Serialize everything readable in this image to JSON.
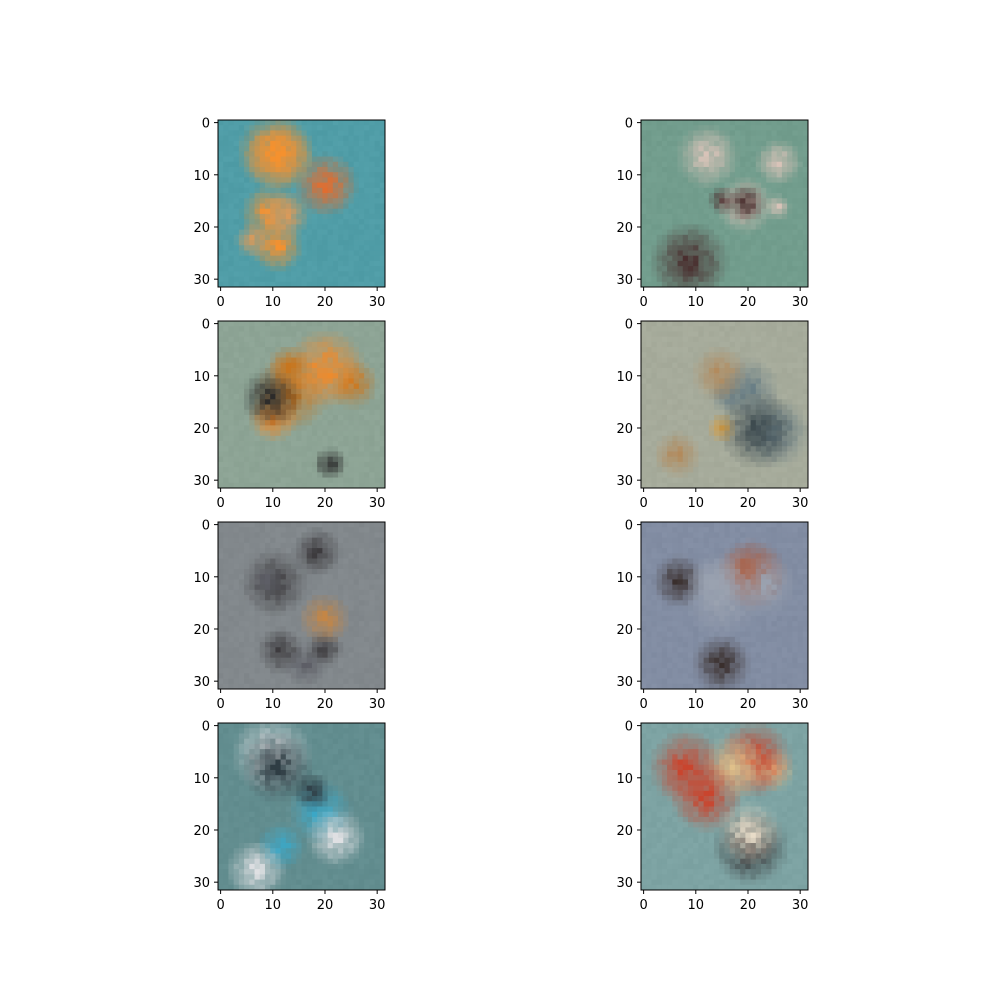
{
  "chart_data": {
    "type": "heatmap",
    "grid": {
      "rows": 4,
      "columns": 2
    },
    "image_size": [
      32,
      32
    ],
    "xlim": [
      -0.5,
      31.5
    ],
    "ylim": [
      31.5,
      -0.5
    ],
    "xticks": [
      0,
      10,
      20,
      30
    ],
    "yticks": [
      0,
      10,
      20,
      30
    ],
    "xtick_labels": [
      "0",
      "10",
      "20",
      "30"
    ],
    "ytick_labels": [
      "0",
      "10",
      "20",
      "30"
    ],
    "title": "",
    "xlabel": "",
    "ylabel": "",
    "panels": [
      {
        "name": "panel-1",
        "background": "#4d9aa4",
        "accents": [
          "#e86b2a",
          "#f5912e",
          "#d99a5a",
          "#7fb0b8"
        ]
      },
      {
        "name": "panel-2",
        "background": "#6f9a8a",
        "accents": [
          "#4a2f2f",
          "#d8c3b8",
          "#8a5a55",
          "#b9a7a0"
        ]
      },
      {
        "name": "panel-3",
        "background": "#8aa192",
        "accents": [
          "#f08a2a",
          "#2a2a2a",
          "#c7761f",
          "#5d6f78"
        ]
      },
      {
        "name": "panel-4",
        "background": "#a3a898",
        "accents": [
          "#b28a5c",
          "#6a7f86",
          "#d79a3a",
          "#3d4a4f"
        ]
      },
      {
        "name": "panel-5",
        "background": "#7f8589",
        "accents": [
          "#e6e2da",
          "#3d3b3e",
          "#c48646",
          "#5d5e66"
        ]
      },
      {
        "name": "panel-6",
        "background": "#7f8aa0",
        "accents": [
          "#e3b126",
          "#3a2f2d",
          "#b2502a",
          "#9aa2b0"
        ]
      },
      {
        "name": "panel-7",
        "background": "#5f8a8c",
        "accents": [
          "#3ba7c6",
          "#dfe0e3",
          "#2f3d44",
          "#c05a5a"
        ]
      },
      {
        "name": "panel-8",
        "background": "#7aa0a0",
        "accents": [
          "#2f2a2c",
          "#e0c08a",
          "#c9452e",
          "#e8dcc8"
        ]
      }
    ]
  }
}
